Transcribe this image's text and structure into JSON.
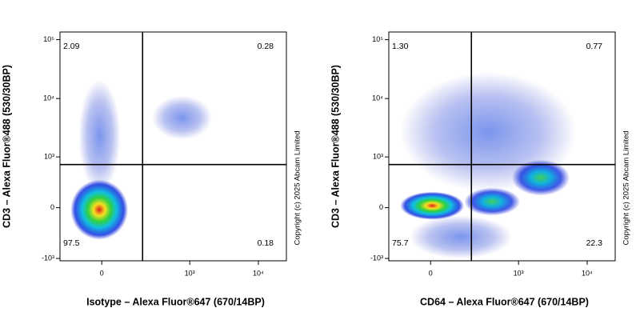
{
  "chart_data": [
    {
      "type": "density",
      "x_label": "Isotype – Alexa Fluor®647 (670/14BP)",
      "y_label": "CD3 – Alexa Fluor®488 (530/30BP)",
      "annotation": "Copyright (c) 2025 Abcam Limited",
      "scale": "biexponential",
      "xlim": [
        -200,
        25600
      ],
      "ylim": [
        -1100,
        135000
      ],
      "xticks": [
        0,
        {
          "value": 1000,
          "label": "10³"
        },
        {
          "value": 10000,
          "label": "10⁴"
        }
      ],
      "yticks": [
        {
          "value": -1000,
          "label": "-10³"
        },
        0,
        {
          "value": 1000,
          "label": "10³"
        },
        {
          "value": 10000,
          "label": "10⁴"
        },
        {
          "value": 100000,
          "label": "10⁵"
        }
      ],
      "gate": {
        "x": 193,
        "y": 730
      },
      "quadrants": {
        "values": [
          2.09,
          0.28,
          97.5,
          0.18
        ],
        "value_labels": [
          "2.09",
          "0.28",
          "97.5",
          "0.18"
        ]
      },
      "populations": [
        {
          "x": [
            275,
            2100
          ],
          "y": [
            2000,
            11100
          ],
          "density": "low"
        },
        {
          "x": [
            -90,
            70
          ],
          "y": [
            186,
            20700
          ],
          "density": "low"
        },
        {
          "x": [
            -131,
            105
          ],
          "y": [
            -448,
            370
          ],
          "density": "high"
        }
      ]
    },
    {
      "type": "density",
      "x_label": "CD64 – Alexa Fluor®647 (670/14BP)",
      "y_label": "CD3 – Alexa Fluor®488 (530/30BP)",
      "annotation": "Copyright (c) 2025 Abcam Limited",
      "scale": "biexponential",
      "xlim": [
        -200,
        25600
      ],
      "ylim": [
        -1100,
        135000
      ],
      "xticks": [
        0,
        {
          "value": 1000,
          "label": "10³"
        },
        {
          "value": 10000,
          "label": "10⁴"
        }
      ],
      "yticks": [
        {
          "value": -1000,
          "label": "-10³"
        },
        0,
        {
          "value": 1000,
          "label": "10³"
        },
        {
          "value": 10000,
          "label": "10⁴"
        },
        {
          "value": 100000,
          "label": "10⁵"
        }
      ],
      "gate": {
        "x": 193,
        "y": 730
      },
      "quadrants": {
        "values": [
          1.3,
          0.77,
          75.7,
          22.3
        ],
        "value_labels": [
          "1.30",
          "0.77",
          "75.7",
          "22.3"
        ]
      },
      "populations": [
        {
          "x": [
            -126,
            6900
          ],
          "y": [
            186,
            28000
          ],
          "density": "low"
        },
        {
          "x": [
            -80,
            800
          ],
          "y": [
            -1000,
            -88
          ],
          "density": "low"
        },
        {
          "x": [
            800,
            5560
          ],
          "y": [
            137,
            890
          ],
          "density": "mid"
        },
        {
          "x": [
            145,
            1050
          ],
          "y": [
            -88,
            242
          ],
          "density": "mid"
        },
        {
          "x": [
            -126,
            145
          ],
          "y": [
            -136,
            186
          ],
          "density": "high"
        }
      ]
    }
  ]
}
